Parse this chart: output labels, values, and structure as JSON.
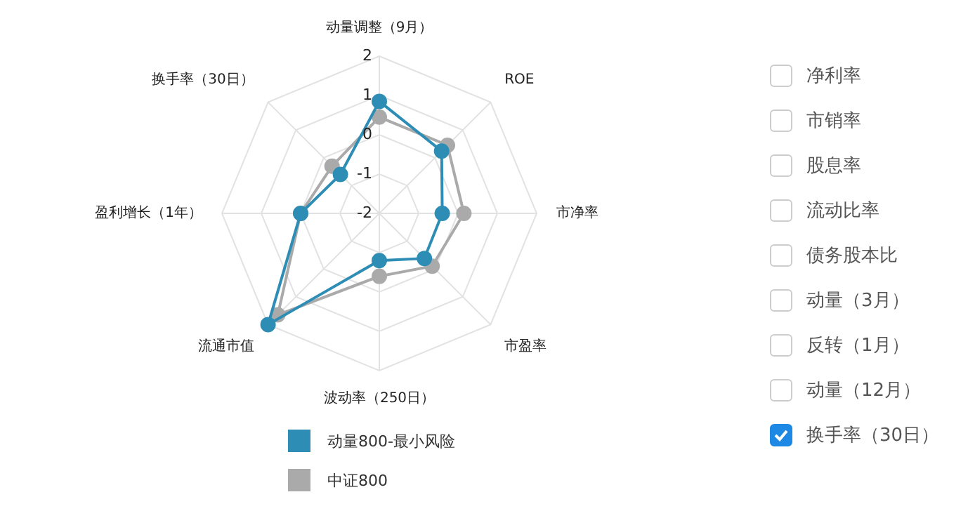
{
  "chart_data": {
    "type": "radar",
    "categories": [
      "动量调整（9月）",
      "ROE",
      "市净率",
      "市盈率",
      "波动率（250日）",
      "流通市值",
      "盈利增长（1年）",
      "换手率（30日）"
    ],
    "series": [
      {
        "name": "动量800-最小风险",
        "color": "#2e8db5",
        "values": [
          0.85,
          0.24,
          -0.4,
          -0.38,
          -0.8,
          2,
          0,
          -0.6
        ]
      },
      {
        "name": "中证800",
        "color": "#aaaaaa",
        "values": [
          0.45,
          0.45,
          0.15,
          -0.1,
          -0.4,
          1.65,
          0,
          -0.3
        ]
      }
    ],
    "ylim": [
      -2,
      2
    ],
    "yticks": [
      -2,
      -1,
      0,
      1,
      2
    ],
    "grid": true,
    "legend": "bottom",
    "marker": "circle",
    "annotations": [
      "净利率",
      "市销率",
      "股息率",
      "流动比率",
      "债务股本比",
      "动量（3月）",
      "反转（1月）",
      "动量（12月）",
      "换手率（30日）"
    ]
  }
}
